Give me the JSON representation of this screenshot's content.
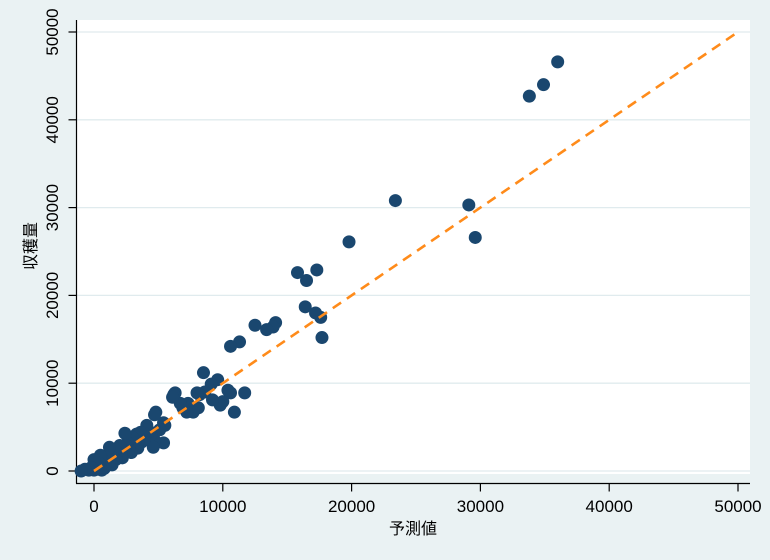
{
  "figure": {
    "background_color": "#eaf2f3",
    "plot_background_color": "#ffffff",
    "gridline_color": "#e0ebee",
    "axis_color": "#000000",
    "marker_color": "#1a476f",
    "reference_line_color": "#ff8b1a"
  },
  "chart_data": {
    "type": "scatter",
    "title": "",
    "xlabel": "予測値",
    "ylabel": "収穫量",
    "xlim": [
      0,
      50000
    ],
    "ylim": [
      0,
      50000
    ],
    "xticks": [
      0,
      10000,
      20000,
      30000,
      40000,
      50000
    ],
    "yticks": [
      0,
      10000,
      20000,
      30000,
      40000,
      50000
    ],
    "grid": "horizontal-only",
    "legend_position": "none",
    "series": [
      {
        "name": "observed-vs-predicted",
        "type": "scatter",
        "marker": "circle",
        "color": "#1a476f",
        "points": [
          [
            36000,
            46600
          ],
          [
            34900,
            44000
          ],
          [
            33800,
            42700
          ],
          [
            29600,
            26600
          ],
          [
            29100,
            30300
          ],
          [
            23400,
            30800
          ],
          [
            19800,
            26100
          ],
          [
            17700,
            15200
          ],
          [
            17600,
            17500
          ],
          [
            17200,
            18000
          ],
          [
            16400,
            18700
          ],
          [
            17300,
            22900
          ],
          [
            16500,
            21700
          ],
          [
            15800,
            22600
          ],
          [
            14100,
            16900
          ],
          [
            13900,
            16400
          ],
          [
            13400,
            16100
          ],
          [
            12500,
            16600
          ],
          [
            11300,
            14700
          ],
          [
            10600,
            14200
          ],
          [
            11700,
            8900
          ],
          [
            10900,
            6700
          ],
          [
            10600,
            8900
          ],
          [
            10400,
            9200
          ],
          [
            10000,
            7900
          ],
          [
            9800,
            7500
          ],
          [
            9600,
            10400
          ],
          [
            9200,
            8100
          ],
          [
            9100,
            9900
          ],
          [
            8600,
            9000
          ],
          [
            8500,
            11200
          ],
          [
            8200,
            8700
          ],
          [
            8100,
            7200
          ],
          [
            8000,
            8900
          ],
          [
            7700,
            6700
          ],
          [
            7300,
            7700
          ],
          [
            7200,
            6700
          ],
          [
            6900,
            7200
          ],
          [
            6700,
            7700
          ],
          [
            6300,
            8900
          ],
          [
            6200,
            8700
          ],
          [
            6100,
            8400
          ],
          [
            5500,
            5200
          ],
          [
            5400,
            5500
          ],
          [
            5400,
            3200
          ],
          [
            5100,
            4700
          ],
          [
            4800,
            6700
          ],
          [
            4700,
            6400
          ],
          [
            4700,
            3500
          ],
          [
            4600,
            2700
          ],
          [
            4400,
            4100
          ],
          [
            4300,
            4500
          ],
          [
            4100,
            5200
          ],
          [
            4000,
            4200
          ],
          [
            3900,
            3500
          ],
          [
            3700,
            3300
          ],
          [
            3600,
            4400
          ],
          [
            3500,
            3700
          ],
          [
            3400,
            2600
          ],
          [
            3300,
            4200
          ],
          [
            3200,
            3500
          ],
          [
            3000,
            3800
          ],
          [
            3000,
            2800
          ],
          [
            2900,
            2100
          ],
          [
            2700,
            2500
          ],
          [
            2600,
            3200
          ],
          [
            2500,
            2900
          ],
          [
            2400,
            4300
          ],
          [
            2400,
            2200
          ],
          [
            2200,
            1500
          ],
          [
            2100,
            1900
          ],
          [
            2000,
            2900
          ],
          [
            1800,
            2100
          ],
          [
            1700,
            1300
          ],
          [
            1600,
            2400
          ],
          [
            1500,
            1500
          ],
          [
            1400,
            700
          ],
          [
            1200,
            2700
          ],
          [
            1200,
            1100
          ],
          [
            1000,
            1600
          ],
          [
            900,
            800
          ],
          [
            800,
            300
          ],
          [
            700,
            1200
          ],
          [
            600,
            100
          ],
          [
            500,
            1800
          ],
          [
            500,
            400
          ],
          [
            400,
            900
          ],
          [
            300,
            600
          ],
          [
            200,
            200
          ],
          [
            100,
            700
          ],
          [
            0,
            1300
          ],
          [
            0,
            100
          ],
          [
            -200,
            400
          ],
          [
            -400,
            100
          ],
          [
            -700,
            200
          ],
          [
            -1000,
            0
          ]
        ]
      },
      {
        "name": "45-degree-reference-line",
        "type": "line",
        "style": "dashed",
        "color": "#ff8b1a",
        "points": [
          [
            0,
            0
          ],
          [
            50000,
            50000
          ]
        ]
      }
    ]
  }
}
